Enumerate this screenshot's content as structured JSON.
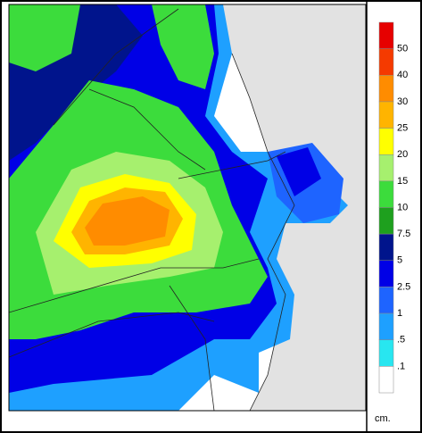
{
  "legend": {
    "labels": [
      "50",
      "40",
      "30",
      "25",
      "20",
      "15",
      "10",
      "7.5",
      "5",
      "2.5",
      "1",
      ".5",
      ".1"
    ],
    "colors": [
      "#e60000",
      "#f53a00",
      "#ff8c00",
      "#ffb400",
      "#ffff00",
      "#a6f06e",
      "#3cdc3c",
      "#1ea01e",
      "#00148c",
      "#0000e6",
      "#1e64ff",
      "#1ea0ff",
      "#28e6f0",
      "#ffffff"
    ],
    "unit": "cm."
  }
}
